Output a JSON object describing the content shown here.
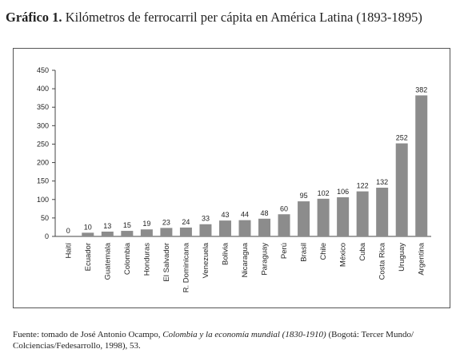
{
  "figure": {
    "label": "Gráfico 1.",
    "title": "Kilómetros de ferrocarril per cápita en América Latina (1893-1895)"
  },
  "source": {
    "prefix": "Fuente: tomado de José Antonio Ocampo, ",
    "work": "Colombia y la economía mundial (1830-1910)",
    "suffix": " (Bogotá: Tercer Mundo/ Colciencias/Fedesarrollo, 1998), 53."
  },
  "chart_data": {
    "type": "bar",
    "title": "",
    "xlabel": "",
    "ylabel": "",
    "ylim": [
      0,
      450
    ],
    "yticks": [
      0,
      50,
      100,
      150,
      200,
      250,
      300,
      350,
      400,
      450
    ],
    "grid": false,
    "bar_color": "#8c8c8c",
    "categories": [
      "Haití",
      "Ecuador",
      "Guatemala",
      "Colombia",
      "Honduras",
      "El Salvador",
      "R. Dominicana",
      "Venezuela",
      "Bolivia",
      "Nicaragua",
      "Paraguay",
      "Perú",
      "Brasil",
      "Chile",
      "México",
      "Cuba",
      "Costa Rica",
      "Uruguay",
      "Argentina"
    ],
    "values": [
      0,
      10,
      13,
      15,
      19,
      23,
      24,
      33,
      43,
      44,
      48,
      60,
      95,
      102,
      106,
      122,
      132,
      252,
      382
    ]
  }
}
